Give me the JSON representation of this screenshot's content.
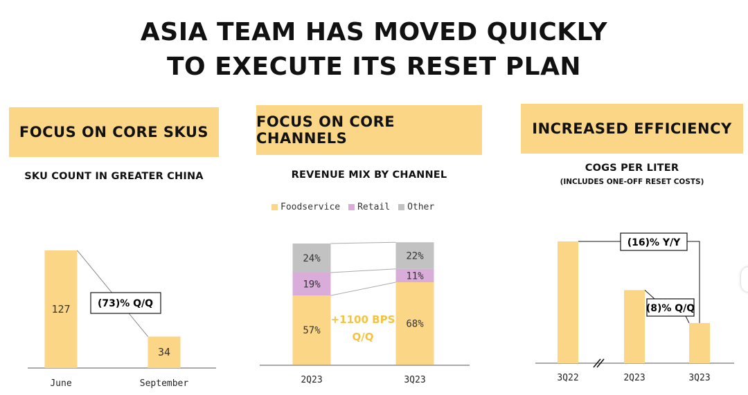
{
  "title": {
    "line1": "ASIA TEAM HAS MOVED QUICKLY",
    "line2": "TO EXECUTE ITS RESET PLAN"
  },
  "panels": [
    {
      "banner": "FOCUS ON CORE SKUS",
      "subtitle": "SKU COUNT IN GREATER CHINA"
    },
    {
      "banner": "FOCUS ON CORE CHANNELS",
      "subtitle": "REVENUE MIX BY CHANNEL"
    },
    {
      "banner": "INCREASED EFFICIENCY",
      "subtitle": "COGS PER LITER",
      "note": "(INCLUDES ONE-OFF RESET COSTS)"
    }
  ],
  "colors": {
    "accent": "#fbd686",
    "retail": "#d9acd9",
    "other": "#c2c2c2",
    "highlight": "#f5c242"
  },
  "chart_data": [
    {
      "type": "bar",
      "title": "SKU COUNT IN GREATER CHINA",
      "categories": [
        "June",
        "September"
      ],
      "values": [
        127,
        34
      ],
      "labels": [
        "127",
        "34"
      ],
      "annotation": "(73)% Q/Q",
      "ylim": [
        0,
        130
      ]
    },
    {
      "type": "bar",
      "stacked": true,
      "title": "REVENUE MIX BY CHANNEL",
      "categories": [
        "2Q23",
        "3Q23"
      ],
      "series": [
        {
          "name": "Foodservice",
          "values": [
            57,
            68
          ],
          "labels": [
            "57%",
            "68%"
          ]
        },
        {
          "name": "Retail",
          "values": [
            19,
            11
          ],
          "labels": [
            "19%",
            "11%"
          ]
        },
        {
          "name": "Other",
          "values": [
            24,
            22
          ],
          "labels": [
            "24%",
            "22%"
          ]
        }
      ],
      "annotation": [
        "+1100 BPS",
        "Q/Q"
      ],
      "ylim": [
        0,
        100
      ]
    },
    {
      "type": "bar",
      "title": "COGS PER LITER",
      "subtitle": "(INCLUDES ONE-OFF RESET COSTS)",
      "categories": [
        "3Q22",
        "2Q23",
        "3Q23"
      ],
      "values": [
        100,
        60,
        33
      ],
      "annotations": [
        "(16)% Y/Y",
        "(8)% Q/Q"
      ],
      "axis_break": true
    }
  ]
}
